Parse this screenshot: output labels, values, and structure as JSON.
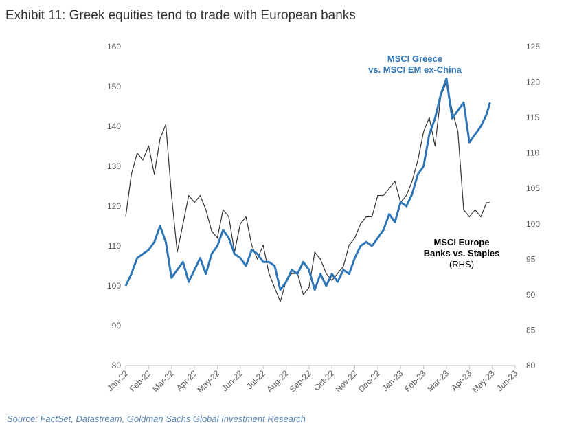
{
  "chart_data": {
    "type": "line",
    "title": "Exhibit 11: Greek equities tend to trade with European banks",
    "source": "Source: FactSet, Datastream, Goldman Sachs Global Investment Research",
    "annotations": [
      {
        "lines": [
          "MSCI Greece",
          "vs. MSCI EM ex-China"
        ],
        "color": "#2e75b6"
      },
      {
        "lines": [
          "MSCI Europe",
          "Banks vs. Staples",
          "(RHS)"
        ],
        "color": "#000000"
      }
    ],
    "x": [
      0,
      0.25,
      0.5,
      0.75,
      1,
      1.25,
      1.5,
      1.75,
      2,
      2.25,
      2.5,
      2.75,
      3,
      3.25,
      3.5,
      3.75,
      4,
      4.25,
      4.5,
      4.75,
      5,
      5.25,
      5.5,
      5.75,
      6,
      6.25,
      6.5,
      6.75,
      7,
      7.25,
      7.5,
      7.75,
      8,
      8.25,
      8.5,
      8.75,
      9,
      9.25,
      9.5,
      9.75,
      10,
      10.25,
      10.5,
      10.75,
      11,
      11.25,
      11.5,
      11.75,
      12,
      12.25,
      12.5,
      12.75,
      13,
      13.25,
      13.5,
      13.75,
      14,
      14.25,
      14.5,
      14.75,
      15,
      15.25,
      15.5,
      15.75,
      15.9
    ],
    "xlim": [
      0,
      17
    ],
    "xticks": [
      {
        "value": 0,
        "label": "Jan-22"
      },
      {
        "value": 1,
        "label": "Feb-22"
      },
      {
        "value": 2,
        "label": "Mar-22"
      },
      {
        "value": 3,
        "label": "Apr-22"
      },
      {
        "value": 4,
        "label": "May-22"
      },
      {
        "value": 5,
        "label": "Jun-22"
      },
      {
        "value": 6,
        "label": "Jul-22"
      },
      {
        "value": 7,
        "label": "Aug-22"
      },
      {
        "value": 8,
        "label": "Sep-22"
      },
      {
        "value": 9,
        "label": "Oct-22"
      },
      {
        "value": 10,
        "label": "Nov-22"
      },
      {
        "value": 11,
        "label": "Dec-22"
      },
      {
        "value": 12,
        "label": "Jan-23"
      },
      {
        "value": 13,
        "label": "Feb-23"
      },
      {
        "value": 14,
        "label": "Mar-23"
      },
      {
        "value": 15,
        "label": "Apr-23"
      },
      {
        "value": 16,
        "label": "May-23"
      },
      {
        "value": 17,
        "label": "Jun-23"
      }
    ],
    "ylim": [
      80,
      160
    ],
    "yticks": [
      80,
      90,
      100,
      110,
      120,
      130,
      140,
      150,
      160
    ],
    "y2lim": [
      80,
      125
    ],
    "y2ticks": [
      80,
      85,
      90,
      95,
      100,
      105,
      110,
      115,
      120,
      125
    ],
    "series": [
      {
        "name": "MSCI Greece vs. MSCI EM ex-China",
        "color": "#2e75b6",
        "axis": "y",
        "values": [
          100,
          103,
          107,
          108,
          109,
          111,
          115,
          111,
          102,
          104,
          106,
          101,
          104,
          107,
          103,
          108,
          110,
          114,
          112,
          108,
          107,
          105,
          109,
          108,
          106,
          106,
          105,
          99,
          101,
          104,
          103,
          106,
          104,
          99,
          103,
          100,
          103,
          101,
          104,
          103,
          107,
          110,
          111,
          110,
          112,
          114,
          118,
          116,
          121,
          120,
          123,
          128,
          130,
          138,
          142,
          148,
          152,
          142,
          144,
          146,
          136,
          138,
          140,
          143,
          146
        ]
      },
      {
        "name": "MSCI Europe Banks vs. Staples",
        "color": "#333333",
        "axis": "y2",
        "values": [
          101,
          107,
          110,
          109,
          111,
          107,
          112,
          114,
          104,
          96,
          100,
          104,
          103,
          104,
          102,
          99,
          98,
          102,
          101,
          96,
          100,
          101,
          97,
          95,
          97,
          93,
          91,
          89,
          92,
          93,
          93,
          90,
          91,
          96,
          95,
          93,
          92,
          93,
          94,
          97,
          98,
          100,
          101,
          101,
          104,
          104,
          105,
          106,
          103,
          104,
          106,
          109,
          113,
          115,
          111,
          118,
          120,
          116,
          113,
          102,
          101,
          102,
          101,
          103,
          103
        ]
      }
    ]
  }
}
